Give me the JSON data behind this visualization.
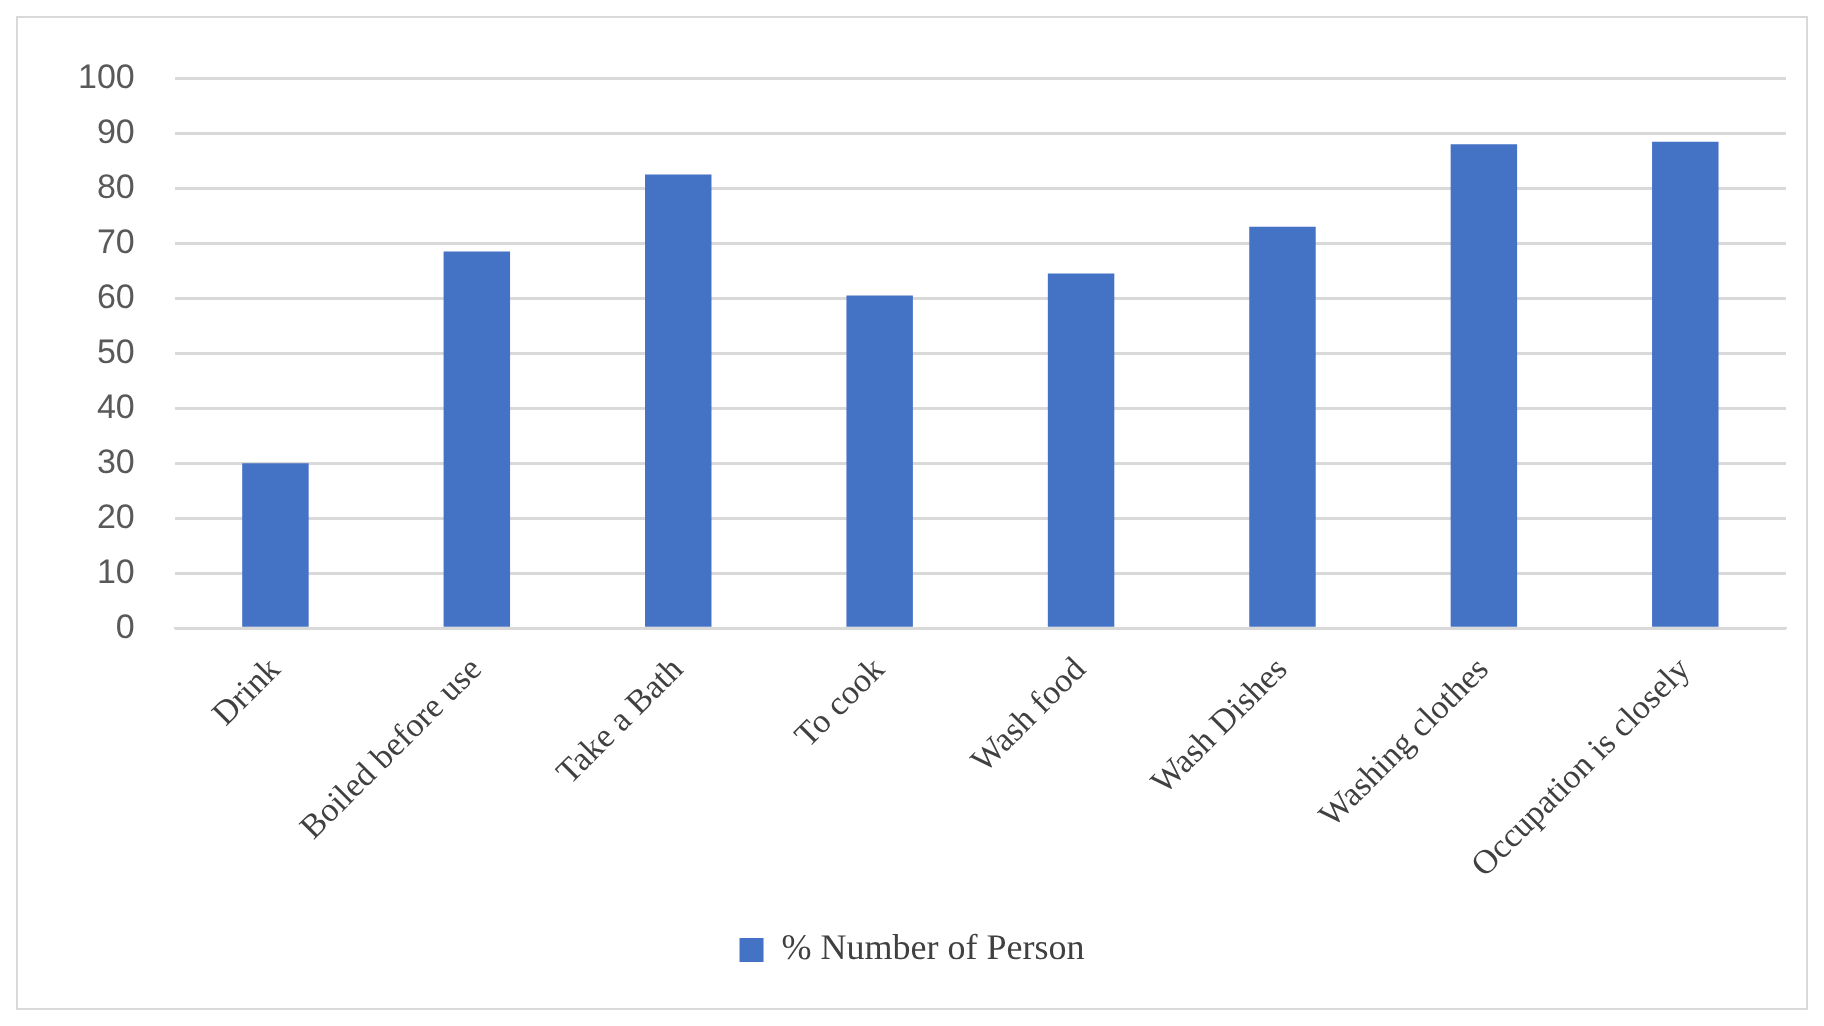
{
  "chart_data": {
    "type": "bar",
    "categories": [
      "Drink",
      "Boiled before use",
      "Take a Bath",
      "To cook",
      "Wash food",
      "Wash Dishes",
      "Washing clothes",
      "Occupation is closely"
    ],
    "series": [
      {
        "name": "% Number of Person",
        "color": "#4472c4",
        "values": [
          30,
          68.5,
          82.5,
          60.5,
          64.5,
          73,
          88,
          88.5
        ]
      }
    ],
    "ylim": [
      0,
      100
    ],
    "yticks": [
      0,
      10,
      20,
      30,
      40,
      50,
      60,
      70,
      80,
      90,
      100
    ],
    "grid": "y",
    "legend": "bottom"
  }
}
